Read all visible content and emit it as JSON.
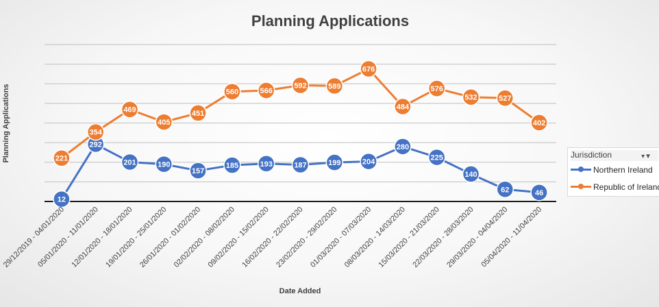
{
  "chart_data": {
    "type": "line",
    "title": "Planning Applications",
    "xlabel": "Date Added",
    "ylabel": "Planning Applications",
    "categories": [
      "29/12/2019 - 04/01/2020",
      "05/01/2020 - 11/01/2020",
      "12/01/2020 - 18/01/2020",
      "19/01/2020 - 25/01/2020",
      "26/01/2020 - 01/02/2020",
      "02/02/2020 - 08/02/2020",
      "09/02/2020 - 15/02/2020",
      "16/02/2020 - 22/02/2020",
      "23/02/2020 - 29/02/2020",
      "01/03/2020 - 07/03/2020",
      "08/03/2020 - 14/03/2020",
      "15/03/2020 - 21/03/2020",
      "22/03/2020 - 28/03/2020",
      "29/03/2020 - 04/04/2020",
      "05/04/2020 - 11/04/2020"
    ],
    "series": [
      {
        "name": "Northern Ireland",
        "color": "#4472c4",
        "values": [
          12,
          292,
          201,
          190,
          157,
          185,
          193,
          187,
          199,
          204,
          280,
          225,
          140,
          62,
          46
        ]
      },
      {
        "name": "Republic of Ireland",
        "color": "#ed7d31",
        "values": [
          221,
          354,
          469,
          405,
          451,
          560,
          566,
          592,
          589,
          676,
          484,
          576,
          532,
          527,
          402
        ]
      }
    ],
    "ylim": [
      0,
      800
    ],
    "grid": true,
    "legend_title": "Jurisdiction",
    "legend_position": "right"
  }
}
